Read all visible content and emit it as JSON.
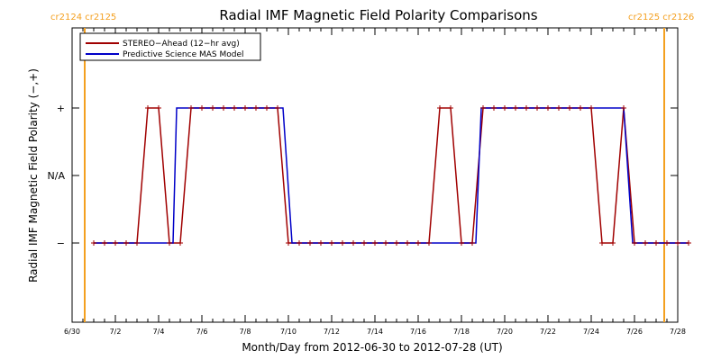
{
  "chart_data": {
    "type": "line",
    "title": "Radial IMF Magnetic Field Polarity Comparisons",
    "xlabel": "Month/Day from 2012-06-30 to 2012-07-28 (UT)",
    "ylabel": "Radial IMF Magnetic Field Polarity (−,+)",
    "xlim": [
      "2012-06-30",
      "2012-07-28"
    ],
    "x_ticks": [
      "6/30",
      "7/2",
      "7/4",
      "7/6",
      "7/8",
      "7/10",
      "7/12",
      "7/14",
      "7/16",
      "7/18",
      "7/20",
      "7/22",
      "7/24",
      "7/26",
      "7/28"
    ],
    "y_categories": [
      "−",
      "N/A",
      "+"
    ],
    "legend": {
      "position": "top-left"
    },
    "carrington_boundaries": [
      {
        "date": "2012-07-01",
        "label": "cr2124 cr2125"
      },
      {
        "date": "2012-07-28",
        "label": "cr2125 cr2126"
      }
    ],
    "series": [
      {
        "name": "STEREO−Ahead (12−hr avg)",
        "color": "#a00000",
        "points": [
          [
            "2012-07-01 00:00",
            "−"
          ],
          [
            "2012-07-01 12:00",
            "−"
          ],
          [
            "2012-07-02 00:00",
            "−"
          ],
          [
            "2012-07-02 12:00",
            "−"
          ],
          [
            "2012-07-03 00:00",
            "−"
          ],
          [
            "2012-07-03 12:00",
            "+"
          ],
          [
            "2012-07-04 00:00",
            "+"
          ],
          [
            "2012-07-04 12:00",
            "−"
          ],
          [
            "2012-07-05 00:00",
            "−"
          ],
          [
            "2012-07-05 12:00",
            "+"
          ],
          [
            "2012-07-06 00:00",
            "+"
          ],
          [
            "2012-07-06 12:00",
            "+"
          ],
          [
            "2012-07-07 00:00",
            "+"
          ],
          [
            "2012-07-07 12:00",
            "+"
          ],
          [
            "2012-07-08 00:00",
            "+"
          ],
          [
            "2012-07-08 12:00",
            "+"
          ],
          [
            "2012-07-09 00:00",
            "+"
          ],
          [
            "2012-07-09 12:00",
            "+"
          ],
          [
            "2012-07-10 00:00",
            "−"
          ],
          [
            "2012-07-10 12:00",
            "−"
          ],
          [
            "2012-07-11 00:00",
            "−"
          ],
          [
            "2012-07-11 12:00",
            "−"
          ],
          [
            "2012-07-12 00:00",
            "−"
          ],
          [
            "2012-07-12 12:00",
            "−"
          ],
          [
            "2012-07-13 00:00",
            "−"
          ],
          [
            "2012-07-13 12:00",
            "−"
          ],
          [
            "2012-07-14 00:00",
            "−"
          ],
          [
            "2012-07-14 12:00",
            "−"
          ],
          [
            "2012-07-15 00:00",
            "−"
          ],
          [
            "2012-07-15 12:00",
            "−"
          ],
          [
            "2012-07-16 00:00",
            "−"
          ],
          [
            "2012-07-16 12:00",
            "−"
          ],
          [
            "2012-07-17 00:00",
            "+"
          ],
          [
            "2012-07-17 12:00",
            "+"
          ],
          [
            "2012-07-18 00:00",
            "−"
          ],
          [
            "2012-07-18 12:00",
            "−"
          ],
          [
            "2012-07-19 00:00",
            "+"
          ],
          [
            "2012-07-19 12:00",
            "+"
          ],
          [
            "2012-07-20 00:00",
            "+"
          ],
          [
            "2012-07-20 12:00",
            "+"
          ],
          [
            "2012-07-21 00:00",
            "+"
          ],
          [
            "2012-07-21 12:00",
            "+"
          ],
          [
            "2012-07-22 00:00",
            "+"
          ],
          [
            "2012-07-22 12:00",
            "+"
          ],
          [
            "2012-07-23 00:00",
            "+"
          ],
          [
            "2012-07-23 12:00",
            "+"
          ],
          [
            "2012-07-24 00:00",
            "+"
          ],
          [
            "2012-07-24 12:00",
            "−"
          ],
          [
            "2012-07-25 00:00",
            "−"
          ],
          [
            "2012-07-25 12:00",
            "+"
          ],
          [
            "2012-07-26 00:00",
            "−"
          ],
          [
            "2012-07-26 12:00",
            "−"
          ],
          [
            "2012-07-27 00:00",
            "−"
          ],
          [
            "2012-07-27 12:00",
            "−"
          ],
          [
            "2012-07-28 00:00",
            "−"
          ],
          [
            "2012-07-28 12:00",
            "−"
          ]
        ]
      },
      {
        "name": "Predictive Science MAS Model",
        "color": "#0000c8",
        "points": [
          [
            "2012-07-01 00:00",
            "−"
          ],
          [
            "2012-07-04 16:00",
            "−"
          ],
          [
            "2012-07-04 20:00",
            "+"
          ],
          [
            "2012-07-09 18:00",
            "+"
          ],
          [
            "2012-07-10 04:00",
            "−"
          ],
          [
            "2012-07-18 16:00",
            "−"
          ],
          [
            "2012-07-18 22:00",
            "+"
          ],
          [
            "2012-07-25 12:00",
            "+"
          ],
          [
            "2012-07-25 22:00",
            "−"
          ],
          [
            "2012-07-28 12:00",
            "−"
          ]
        ]
      }
    ]
  }
}
